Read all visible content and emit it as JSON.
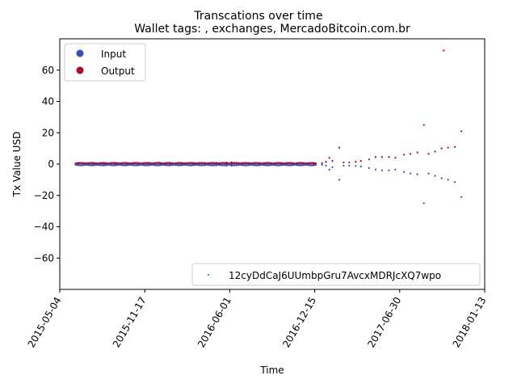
{
  "chart_data": {
    "type": "scatter",
    "title": "Transcations over time",
    "subtitle": "Wallet tags: , exchanges, MercadoBitcoin.com.br",
    "xlabel": "Time",
    "ylabel": "Tx Value USD",
    "x_type": "date",
    "xlim": [
      "2015-05-04",
      "2018-01-13"
    ],
    "ylim": [
      -80,
      80
    ],
    "x_ticks": [
      "2015-05-04",
      "2015-11-17",
      "2016-06-01",
      "2016-12-15",
      "2017-06-30",
      "2018-01-13"
    ],
    "y_ticks": [
      -60,
      -40,
      -20,
      0,
      20,
      40,
      60
    ],
    "y_tick_labels": [
      "−60",
      "−40",
      "−20",
      "0",
      "20",
      "40",
      "60"
    ],
    "grid": false,
    "legend_main": {
      "placement": "top-left",
      "entries": [
        {
          "label": "Input",
          "color": "#3b4cc0"
        },
        {
          "label": "Output",
          "color": "#b40426"
        }
      ]
    },
    "legend_address": {
      "placement": "bottom-right",
      "label": "12cyDdCaJ6UUmbpGru7AvcxMDRJcXQ7wpo",
      "color": "#2ca02c"
    },
    "series": [
      {
        "name": "Input",
        "color": "#3b4cc0",
        "points": [
          [
            "2015-06-10",
            -0.2
          ],
          [
            "2015-07-01",
            -0.3
          ],
          [
            "2015-07-20",
            -0.2
          ],
          [
            "2015-08-15",
            -0.3
          ],
          [
            "2015-09-10",
            -0.3
          ],
          [
            "2015-10-05",
            -0.4
          ],
          [
            "2015-11-01",
            -0.5
          ],
          [
            "2015-11-25",
            -0.5
          ],
          [
            "2015-12-20",
            -0.6
          ],
          [
            "2016-01-15",
            -0.4
          ],
          [
            "2016-02-10",
            -0.5
          ],
          [
            "2016-03-10",
            -0.5
          ],
          [
            "2016-04-05",
            -0.6
          ],
          [
            "2016-05-01",
            -0.7
          ],
          [
            "2016-05-25",
            -0.9
          ],
          [
            "2016-06-05",
            -1.0
          ],
          [
            "2016-06-20",
            -0.5
          ],
          [
            "2016-07-15",
            -0.4
          ],
          [
            "2016-08-10",
            -0.3
          ],
          [
            "2016-09-05",
            -0.3
          ],
          [
            "2016-10-01",
            -0.3
          ],
          [
            "2016-10-25",
            -0.3
          ],
          [
            "2016-11-20",
            -0.3
          ],
          [
            "2016-12-15",
            -0.4
          ],
          [
            "2017-01-01",
            -0.5
          ],
          [
            "2017-01-10",
            -1.0
          ],
          [
            "2017-01-18",
            -3.5
          ],
          [
            "2017-01-25",
            -2.0
          ],
          [
            "2017-02-10",
            -10.0
          ],
          [
            "2017-02-20",
            -1.0
          ],
          [
            "2017-03-05",
            -1.0
          ],
          [
            "2017-03-20",
            -1.2
          ],
          [
            "2017-04-01",
            -1.5
          ],
          [
            "2017-04-20",
            -2.5
          ],
          [
            "2017-05-05",
            -3.5
          ],
          [
            "2017-05-20",
            -4.0
          ],
          [
            "2017-06-05",
            -4.0
          ],
          [
            "2017-06-20",
            -3.5
          ],
          [
            "2017-07-10",
            -5.0
          ],
          [
            "2017-07-25",
            -6.0
          ],
          [
            "2017-08-10",
            -6.5
          ],
          [
            "2017-08-25",
            -25.0
          ],
          [
            "2017-09-05",
            -6.0
          ],
          [
            "2017-09-20",
            -7.5
          ],
          [
            "2017-10-05",
            -9.0
          ],
          [
            "2017-10-20",
            -10.0
          ],
          [
            "2017-11-05",
            -11.5
          ],
          [
            "2017-11-20",
            -21.0
          ]
        ]
      },
      {
        "name": "Output",
        "color": "#b40426",
        "points": [
          [
            "2015-06-10",
            0.3
          ],
          [
            "2015-07-01",
            0.4
          ],
          [
            "2015-07-20",
            0.5
          ],
          [
            "2015-08-15",
            0.5
          ],
          [
            "2015-09-10",
            0.5
          ],
          [
            "2015-10-05",
            0.6
          ],
          [
            "2015-11-01",
            0.7
          ],
          [
            "2015-11-25",
            0.8
          ],
          [
            "2015-12-20",
            0.9
          ],
          [
            "2016-01-15",
            0.7
          ],
          [
            "2016-02-10",
            0.6
          ],
          [
            "2016-03-10",
            0.6
          ],
          [
            "2016-04-05",
            0.7
          ],
          [
            "2016-05-01",
            0.8
          ],
          [
            "2016-05-25",
            1.0
          ],
          [
            "2016-06-05",
            1.2
          ],
          [
            "2016-06-20",
            0.6
          ],
          [
            "2016-07-15",
            0.5
          ],
          [
            "2016-08-10",
            0.4
          ],
          [
            "2016-09-05",
            0.4
          ],
          [
            "2016-10-01",
            0.4
          ],
          [
            "2016-10-25",
            0.4
          ],
          [
            "2016-11-20",
            0.4
          ],
          [
            "2016-12-15",
            0.5
          ],
          [
            "2017-01-01",
            0.6
          ],
          [
            "2017-01-10",
            1.5
          ],
          [
            "2017-01-18",
            4.0
          ],
          [
            "2017-01-25",
            2.0
          ],
          [
            "2017-02-10",
            10.5
          ],
          [
            "2017-02-20",
            1.0
          ],
          [
            "2017-03-05",
            1.0
          ],
          [
            "2017-03-20",
            1.5
          ],
          [
            "2017-04-01",
            2.0
          ],
          [
            "2017-04-20",
            3.0
          ],
          [
            "2017-05-05",
            4.5
          ],
          [
            "2017-05-20",
            4.5
          ],
          [
            "2017-06-05",
            4.5
          ],
          [
            "2017-06-20",
            4.0
          ],
          [
            "2017-07-10",
            6.0
          ],
          [
            "2017-07-25",
            6.5
          ],
          [
            "2017-08-10",
            7.5
          ],
          [
            "2017-08-25",
            25.0
          ],
          [
            "2017-09-05",
            6.5
          ],
          [
            "2017-09-20",
            8.0
          ],
          [
            "2017-10-05",
            10.0
          ],
          [
            "2017-10-10",
            72.5
          ],
          [
            "2017-10-20",
            10.5
          ],
          [
            "2017-11-05",
            11.0
          ],
          [
            "2017-11-20",
            21.0
          ]
        ]
      }
    ]
  }
}
